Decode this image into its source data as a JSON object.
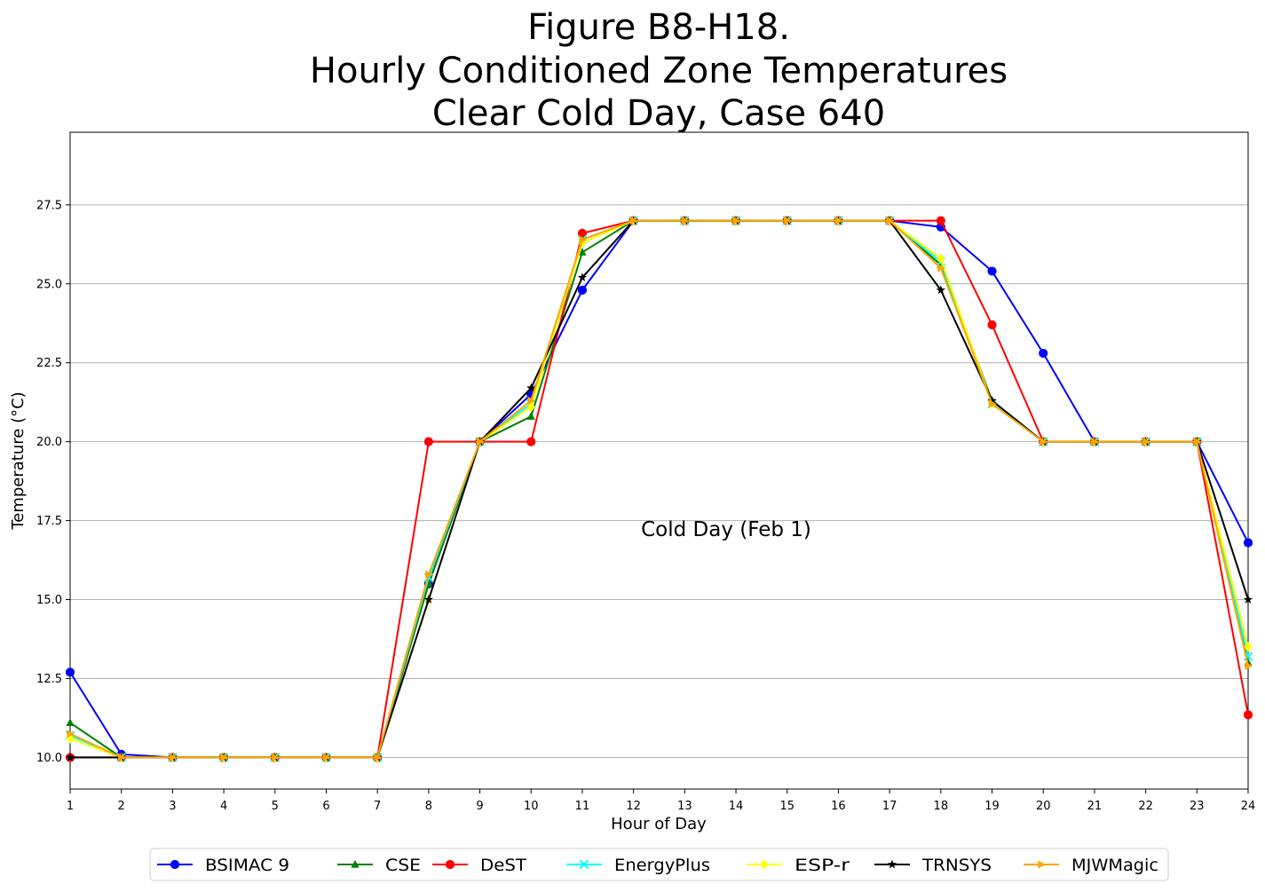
{
  "chart_data": {
    "type": "line",
    "title_lines": [
      "Figure B8-H18.",
      "Hourly Conditioned Zone Temperatures",
      "Clear Cold Day, Case 640"
    ],
    "xlabel": "Hour of Day",
    "ylabel": "Temperature (°C)",
    "annotation": "Cold Day (Feb 1)",
    "xlim": [
      1,
      24
    ],
    "ylim": [
      9.0,
      29.8
    ],
    "x": [
      1,
      2,
      3,
      4,
      5,
      6,
      7,
      8,
      9,
      10,
      11,
      12,
      13,
      14,
      15,
      16,
      17,
      18,
      19,
      20,
      21,
      22,
      23,
      24
    ],
    "x_ticks": [
      "1",
      "2",
      "3",
      "4",
      "5",
      "6",
      "7",
      "8",
      "9",
      "10",
      "11",
      "12",
      "13",
      "14",
      "15",
      "16",
      "17",
      "18",
      "19",
      "20",
      "21",
      "22",
      "23",
      "24"
    ],
    "y_ticks": [
      10.0,
      12.5,
      15.0,
      17.5,
      20.0,
      22.5,
      25.0,
      27.5
    ],
    "y_tick_labels": [
      "10.0",
      "12.5",
      "15.0",
      "17.5",
      "20.0",
      "22.5",
      "25.0",
      "27.5"
    ],
    "grid": "horizontal",
    "legend_position": "bottom-center",
    "series": [
      {
        "name": "BSIMAC 9",
        "color": "#0000ff",
        "marker": "circle",
        "values": [
          12.7,
          10.1,
          10.0,
          10.0,
          10.0,
          10.0,
          10.0,
          15.5,
          20.0,
          21.5,
          24.8,
          27.0,
          27.0,
          27.0,
          27.0,
          27.0,
          27.0,
          26.8,
          25.4,
          22.8,
          20.0,
          20.0,
          20.0,
          16.8
        ]
      },
      {
        "name": "CSE",
        "color": "#008000",
        "marker": "triangle",
        "values": [
          11.1,
          10.0,
          10.0,
          10.0,
          10.0,
          10.0,
          10.0,
          15.5,
          20.0,
          20.8,
          26.0,
          27.0,
          27.0,
          27.0,
          27.0,
          27.0,
          27.0,
          25.6,
          21.3,
          20.0,
          20.0,
          20.0,
          20.0,
          13.0
        ]
      },
      {
        "name": "DeST",
        "color": "#ff0000",
        "marker": "circle",
        "values": [
          10.0,
          10.0,
          10.0,
          10.0,
          10.0,
          10.0,
          10.0,
          20.0,
          20.0,
          20.0,
          26.6,
          27.0,
          27.0,
          27.0,
          27.0,
          27.0,
          27.0,
          27.0,
          23.7,
          20.0,
          20.0,
          20.0,
          20.0,
          11.35
        ]
      },
      {
        "name": "EnergyPlus",
        "color": "#00ffff",
        "marker": "x",
        "values": [
          10.7,
          10.0,
          10.0,
          10.0,
          10.0,
          10.0,
          10.0,
          15.7,
          20.0,
          21.2,
          26.4,
          27.0,
          27.0,
          27.0,
          27.0,
          27.0,
          27.0,
          25.7,
          21.2,
          20.0,
          20.0,
          20.0,
          20.0,
          13.2
        ]
      },
      {
        "name": "ESP-r",
        "color": "#ffff00",
        "marker": "diamond",
        "values": [
          10.6,
          10.0,
          10.0,
          10.0,
          10.0,
          10.0,
          10.0,
          15.0,
          20.0,
          21.1,
          26.3,
          27.0,
          27.0,
          27.0,
          27.0,
          27.0,
          27.0,
          25.8,
          21.2,
          20.0,
          20.0,
          20.0,
          20.0,
          13.5
        ]
      },
      {
        "name": "TRNSYS",
        "color": "#000000",
        "marker": "star",
        "values": [
          10.0,
          10.0,
          10.0,
          10.0,
          10.0,
          10.0,
          10.0,
          15.0,
          20.0,
          21.7,
          25.2,
          27.0,
          27.0,
          27.0,
          27.0,
          27.0,
          27.0,
          24.8,
          21.3,
          20.0,
          20.0,
          20.0,
          20.0,
          15.0
        ]
      },
      {
        "name": "MJWMagic",
        "color": "#ffa500",
        "marker": "triangle-right",
        "values": [
          10.75,
          10.0,
          10.0,
          10.0,
          10.0,
          10.0,
          10.0,
          15.8,
          20.0,
          21.3,
          26.4,
          27.0,
          27.0,
          27.0,
          27.0,
          27.0,
          27.0,
          25.5,
          21.2,
          20.0,
          20.0,
          20.0,
          20.0,
          12.9
        ]
      }
    ]
  }
}
